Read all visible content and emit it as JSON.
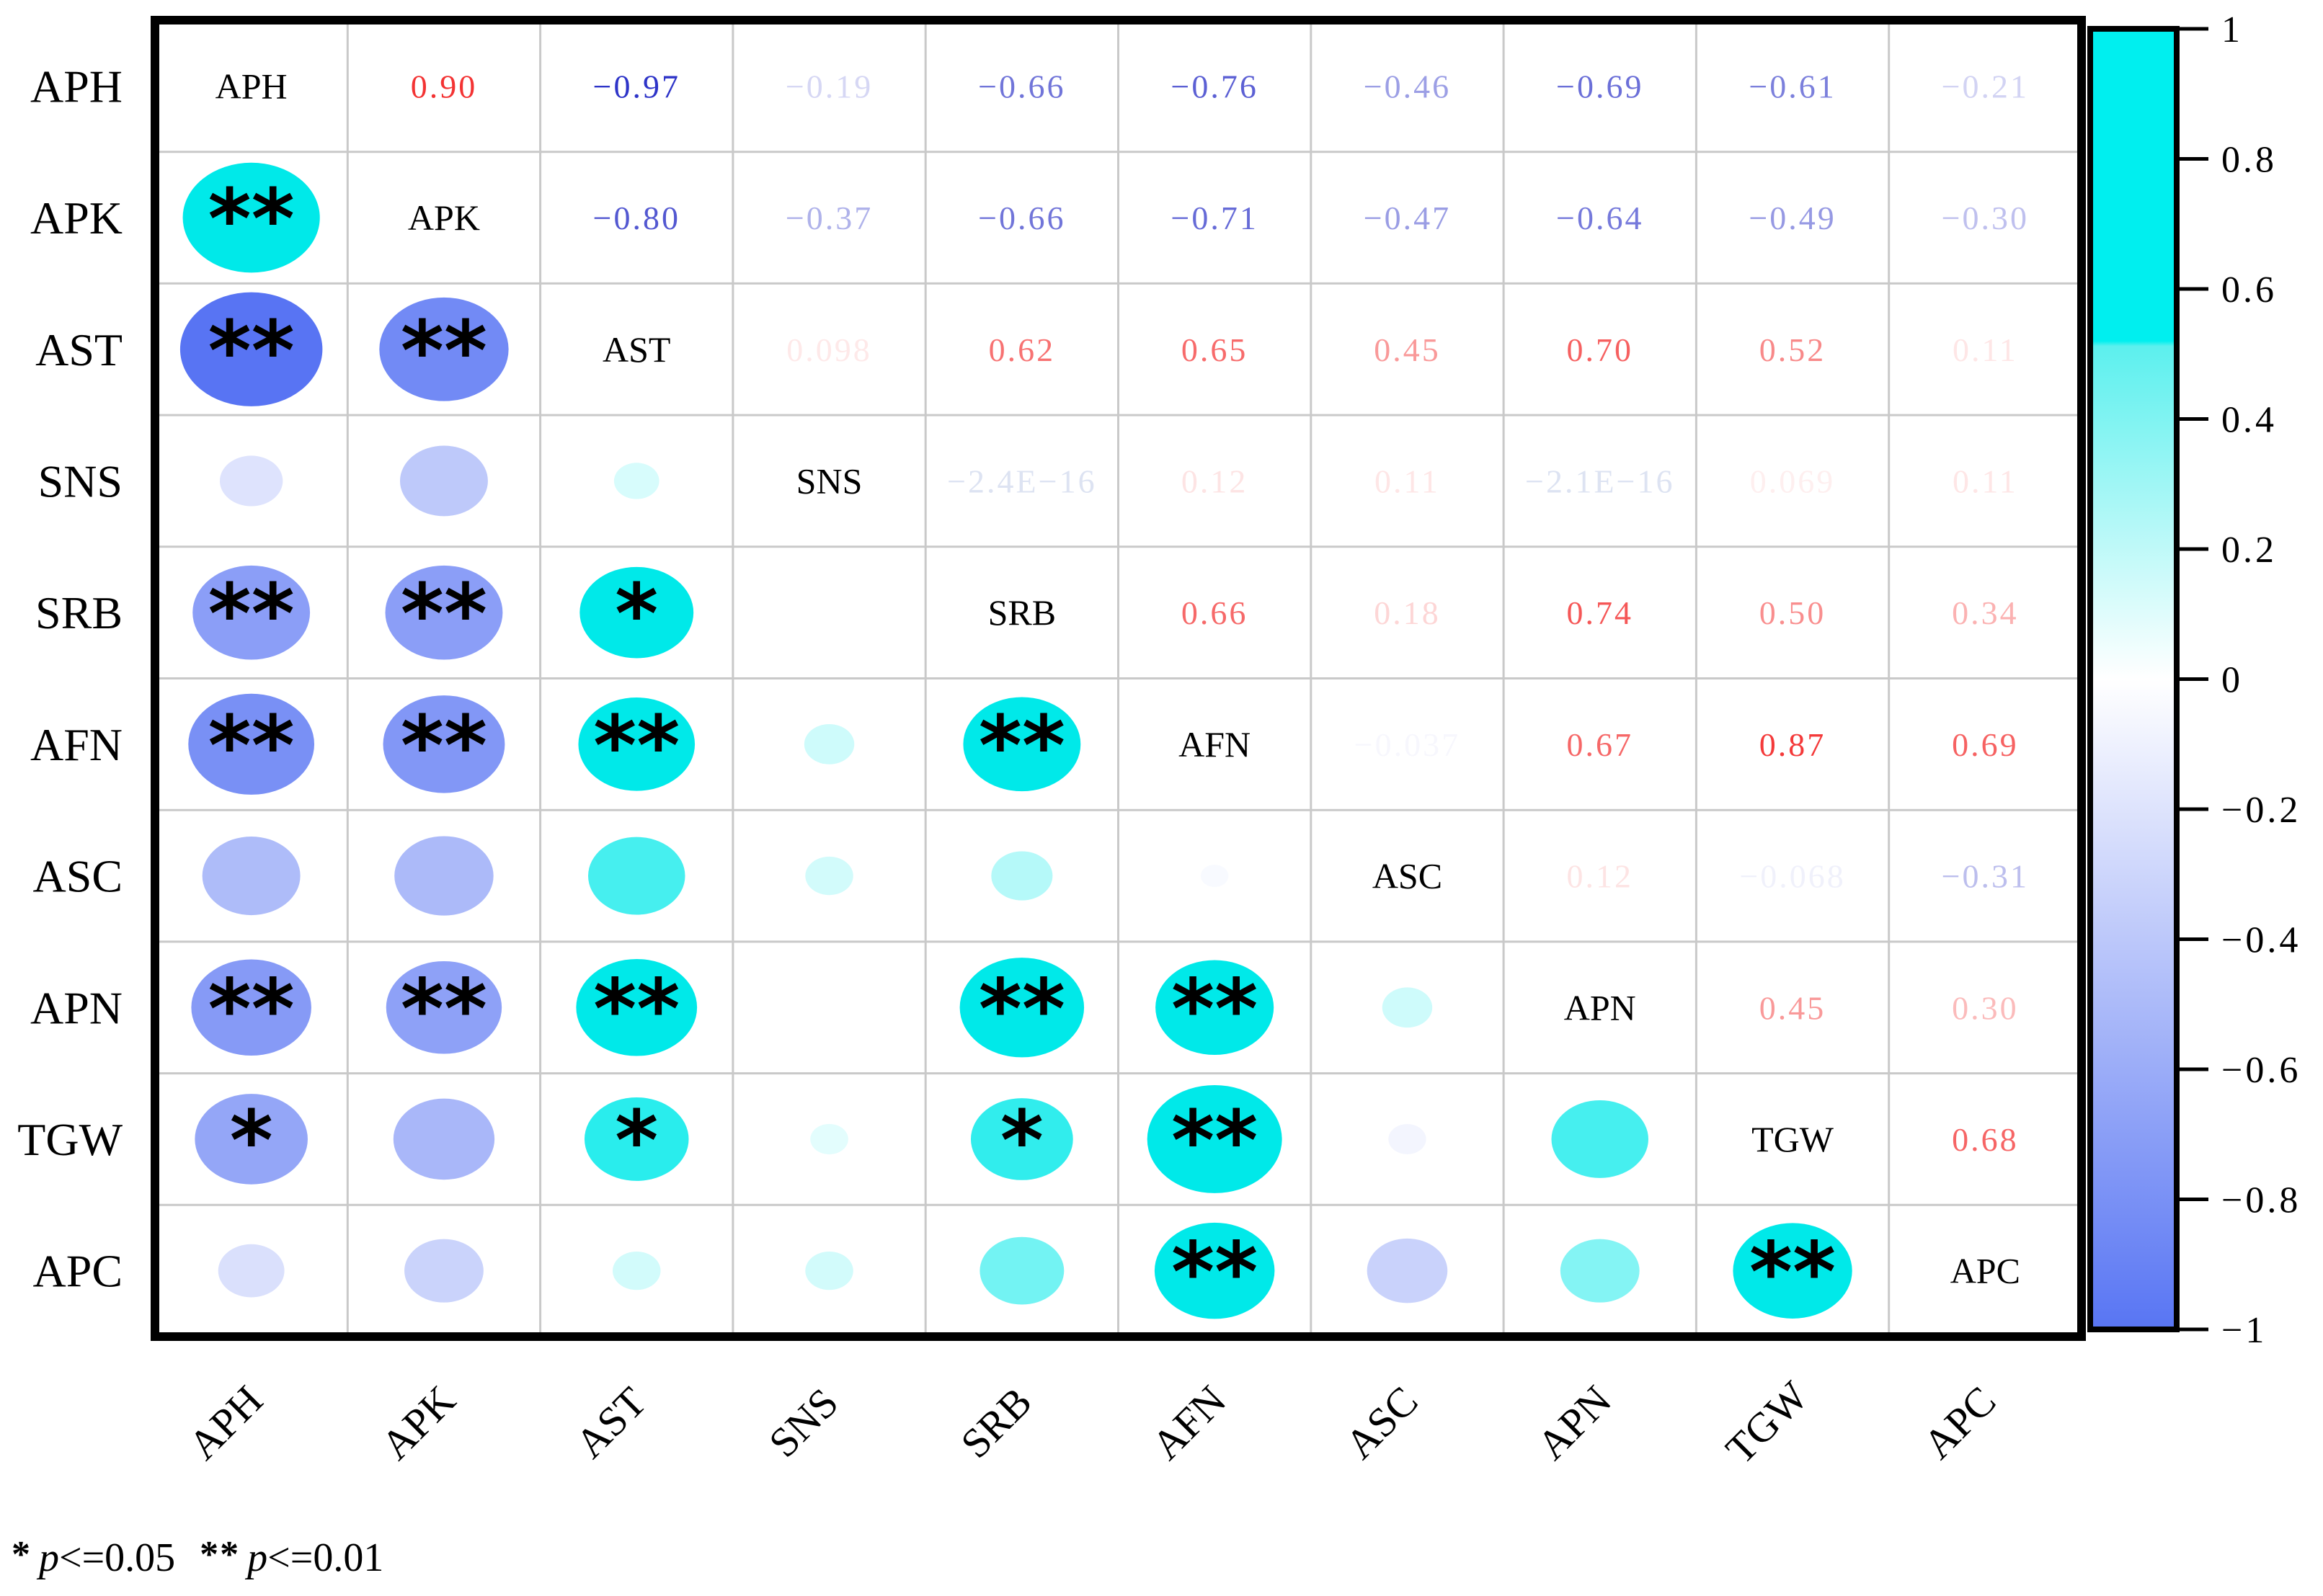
{
  "chart_data": {
    "type": "heatmap",
    "subtype": "correlation-matrix-correlogram",
    "title": "",
    "variables": [
      "APH",
      "APK",
      "AST",
      "SNS",
      "SRB",
      "AFN",
      "ASC",
      "APN",
      "TGW",
      "APC"
    ],
    "matrix": [
      [
        null,
        0.9,
        -0.97,
        -0.19,
        -0.66,
        -0.76,
        -0.46,
        -0.69,
        -0.61,
        -0.21
      ],
      [
        0.9,
        null,
        -0.8,
        -0.37,
        -0.66,
        -0.71,
        -0.47,
        -0.64,
        -0.49,
        -0.3
      ],
      [
        -0.97,
        -0.8,
        null,
        0.098,
        0.62,
        0.65,
        0.45,
        0.7,
        0.52,
        0.11
      ],
      [
        -0.19,
        -0.37,
        0.098,
        null,
        -2.4e-16,
        0.12,
        0.11,
        -2.1e-16,
        0.069,
        0.11
      ],
      [
        -0.66,
        -0.66,
        0.62,
        -2.4e-16,
        null,
        0.66,
        0.18,
        0.74,
        0.5,
        0.34
      ],
      [
        -0.76,
        -0.71,
        0.65,
        0.12,
        0.66,
        null,
        -0.037,
        0.67,
        0.87,
        0.69
      ],
      [
        -0.46,
        -0.47,
        0.45,
        0.11,
        0.18,
        -0.037,
        null,
        0.12,
        -0.068,
        -0.31
      ],
      [
        -0.69,
        -0.64,
        0.7,
        -2.1e-16,
        0.74,
        0.67,
        0.12,
        null,
        0.45,
        0.3
      ],
      [
        -0.61,
        -0.49,
        0.52,
        0.069,
        0.5,
        0.87,
        -0.068,
        0.45,
        null,
        0.68
      ],
      [
        -0.21,
        -0.3,
        0.11,
        0.11,
        0.34,
        0.69,
        -0.31,
        0.3,
        0.68,
        null
      ]
    ],
    "upper_labels": [
      [
        "",
        "0.90",
        "−0.97",
        "−0.19",
        "−0.66",
        "−0.76",
        "−0.46",
        "−0.69",
        "−0.61",
        "−0.21"
      ],
      [
        "",
        "",
        "−0.80",
        "−0.37",
        "−0.66",
        "−0.71",
        "−0.47",
        "−0.64",
        "−0.49",
        "−0.30"
      ],
      [
        "",
        "",
        "",
        "0.098",
        "0.62",
        "0.65",
        "0.45",
        "0.70",
        "0.52",
        "0.11"
      ],
      [
        "",
        "",
        "",
        "",
        "−2.4E−16",
        "0.12",
        "0.11",
        "−2.1E−16",
        "0.069",
        "0.11"
      ],
      [
        "",
        "",
        "",
        "",
        "",
        "0.66",
        "0.18",
        "0.74",
        "0.50",
        "0.34"
      ],
      [
        "",
        "",
        "",
        "",
        "",
        "",
        "−0.037",
        "0.67",
        "0.87",
        "0.69"
      ],
      [
        "",
        "",
        "",
        "",
        "",
        "",
        "",
        "0.12",
        "−0.068",
        "−0.31"
      ],
      [
        "",
        "",
        "",
        "",
        "",
        "",
        "",
        "",
        "0.45",
        "0.30"
      ],
      [
        "",
        "",
        "",
        "",
        "",
        "",
        "",
        "",
        "",
        "0.68"
      ],
      [
        "",
        "",
        "",
        "",
        "",
        "",
        "",
        "",
        "",
        ""
      ]
    ],
    "stars": [
      [
        "",
        "",
        "",
        "",
        "",
        "",
        "",
        "",
        "",
        ""
      ],
      [
        "**",
        "",
        "",
        "",
        "",
        "",
        "",
        "",
        "",
        ""
      ],
      [
        "**",
        "**",
        "",
        "",
        "",
        "",
        "",
        "",
        "",
        ""
      ],
      [
        "",
        "",
        "",
        "",
        "",
        "",
        "",
        "",
        "",
        ""
      ],
      [
        "**",
        "**",
        "*",
        "",
        "",
        "",
        "",
        "",
        "",
        ""
      ],
      [
        "**",
        "**",
        "**",
        "",
        "**",
        "",
        "",
        "",
        "",
        ""
      ],
      [
        "",
        "",
        "",
        "",
        "",
        "",
        "",
        "",
        "",
        ""
      ],
      [
        "**",
        "**",
        "**",
        "",
        "**",
        "**",
        "",
        "",
        "",
        ""
      ],
      [
        "*",
        "",
        "*",
        "",
        "*",
        "**",
        "",
        "",
        "",
        ""
      ],
      [
        "",
        "",
        "",
        "",
        "",
        "**",
        "",
        "",
        "**",
        ""
      ]
    ],
    "colorbar": {
      "ticks": [
        "1",
        "0.8",
        "0.6",
        "0.4",
        "0.2",
        "0",
        "−0.2",
        "−0.4",
        "−0.6",
        "−0.8",
        "−1"
      ],
      "tick_values": [
        1,
        0.8,
        0.6,
        0.4,
        0.2,
        0,
        -0.2,
        -0.4,
        -0.6,
        -0.8,
        -1
      ],
      "top_color": "#00EFEF",
      "mid_break_color": "#5CF0EE",
      "zero_color": "#FFFFFF",
      "bottom_color": "#5875F3",
      "saturation_break": 0.52
    },
    "colors": {
      "positive_text": "#F21C1C",
      "negative_text": "#282EC6",
      "near_zero_text": "#DDE3F2",
      "positive_circle": "#00E9E9",
      "negative_circle": "#5874F3",
      "grid": "#C9C9C9",
      "border": "#000000",
      "star": "#000000"
    },
    "legend_position": "right",
    "grid": true
  },
  "footnote": {
    "star1": "*",
    "p1": "p",
    "cond1": "<=0.05",
    "star2": "**",
    "p2": "p",
    "cond2": "<=0.01"
  }
}
